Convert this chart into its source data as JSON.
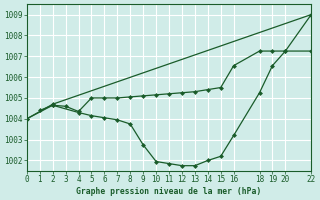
{
  "bg_color": "#d0ece8",
  "grid_color": "#ffffff",
  "line_color": "#1a5c2a",
  "title": "Graphe pression niveau de la mer (hPa)",
  "xlim": [
    0,
    22
  ],
  "ylim": [
    1001.5,
    1009.5
  ],
  "yticks": [
    1002,
    1003,
    1004,
    1005,
    1006,
    1007,
    1008,
    1009
  ],
  "xticks": [
    0,
    1,
    2,
    3,
    4,
    5,
    6,
    7,
    8,
    9,
    10,
    11,
    12,
    13,
    14,
    15,
    16,
    18,
    19,
    20,
    22
  ],
  "xtick_labels": [
    "0",
    "1",
    "2",
    "3",
    "4",
    "5",
    "6",
    "7",
    "8",
    "9",
    "10",
    "11",
    "12",
    "13",
    "14",
    "15",
    "16",
    "18",
    "19",
    "20",
    "22"
  ],
  "series1_x": [
    0,
    2,
    22
  ],
  "series1_y": [
    1004.0,
    1004.7,
    1009.0
  ],
  "series2_x": [
    0,
    2,
    4,
    5,
    6,
    7,
    8,
    9,
    10,
    11,
    12,
    13,
    14,
    15,
    16,
    18,
    19,
    20,
    22
  ],
  "series2_y": [
    1004.0,
    1004.65,
    1004.3,
    1004.15,
    1004.05,
    1003.95,
    1003.75,
    1002.75,
    1001.95,
    1001.85,
    1001.75,
    1001.75,
    1002.0,
    1002.2,
    1003.2,
    1005.25,
    1006.55,
    1007.25,
    1009.0
  ],
  "series3_x": [
    1,
    2,
    3,
    4,
    5,
    6,
    7,
    8,
    9,
    10,
    11,
    12,
    13,
    14,
    15,
    16,
    18,
    19,
    20,
    22
  ],
  "series3_y": [
    1004.4,
    1004.65,
    1004.6,
    1004.35,
    1005.0,
    1005.0,
    1005.0,
    1005.05,
    1005.1,
    1005.15,
    1005.2,
    1005.25,
    1005.3,
    1005.4,
    1005.5,
    1006.55,
    1007.25,
    1007.25,
    1007.25,
    1007.25
  ]
}
